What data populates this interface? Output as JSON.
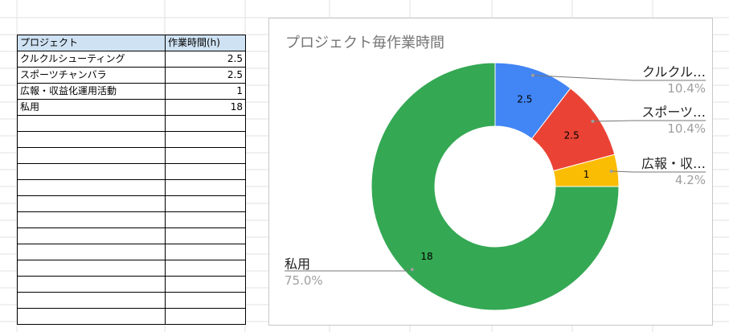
{
  "sheet": {
    "header": {
      "project": "プロジェクト",
      "hours": "作業時間(h)"
    },
    "rows": [
      {
        "project": "クルクルシューティング",
        "hours": "2.5"
      },
      {
        "project": "スポーツチャンバラ",
        "hours": "2.5"
      },
      {
        "project": "広報・収益化運用活動",
        "hours": "1"
      },
      {
        "project": "私用",
        "hours": "18"
      }
    ]
  },
  "chart_data": {
    "type": "pie",
    "donut": true,
    "title": "プロジェクト毎作業時間",
    "slices": [
      {
        "label": "クルクル…",
        "value": 2.5,
        "value_label": "2.5",
        "percent": "10.4%",
        "color": "#4285f4"
      },
      {
        "label": "スポーツ…",
        "value": 2.5,
        "value_label": "2.5",
        "percent": "10.4%",
        "color": "#ea4335"
      },
      {
        "label": "広報・収…",
        "value": 1,
        "value_label": "1",
        "percent": "4.2%",
        "color": "#fbbc04"
      },
      {
        "label": "私用",
        "value": 18,
        "value_label": "18",
        "percent": "75.0%",
        "color": "#34a853"
      }
    ]
  }
}
